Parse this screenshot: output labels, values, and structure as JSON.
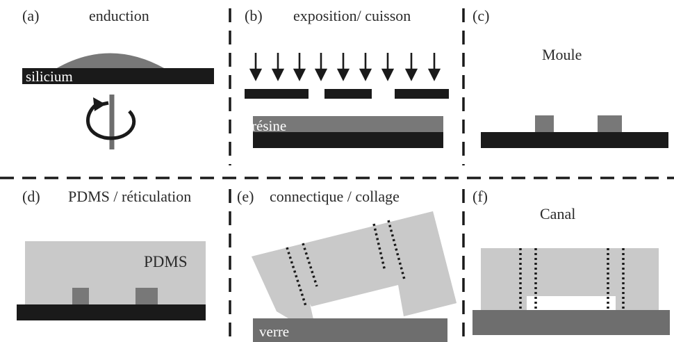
{
  "panels": {
    "a": {
      "letter": "(a)",
      "title": "enduction",
      "substrate_label": "silicium"
    },
    "b": {
      "letter": "(b)",
      "title": "exposition/ cuisson",
      "resin_label": "résine"
    },
    "c": {
      "letter": "(c)",
      "title": "Moule"
    },
    "d": {
      "letter": "(d)",
      "title": "PDMS / réticulation",
      "pdms_label": "PDMS"
    },
    "e": {
      "letter": "(e)",
      "title": "connectique / collage",
      "glass_label": "verre"
    },
    "f": {
      "letter": "(f)",
      "title": "Canal"
    }
  },
  "colors": {
    "black": "#1a1a1a",
    "dark_gray": "#6e6e6e",
    "mid_gray": "#787878",
    "light_gray": "#c9c9c9",
    "white": "#ffffff"
  }
}
